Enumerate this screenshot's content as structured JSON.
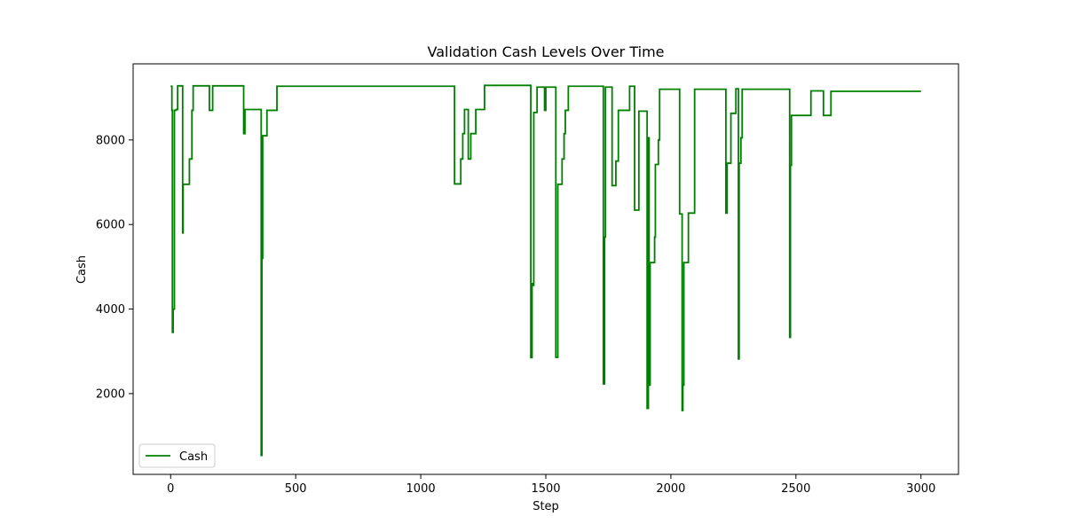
{
  "chart_data": {
    "type": "line",
    "title": "Validation Cash Levels Over Time",
    "xlabel": "Step",
    "ylabel": "Cash",
    "xlim": [
      -150,
      3150
    ],
    "ylim": [
      90,
      9800
    ],
    "xticks": [
      0,
      500,
      1000,
      1500,
      2000,
      2500,
      3000
    ],
    "yticks": [
      2000,
      4000,
      6000,
      8000
    ],
    "grid": false,
    "legend_position": "lower-left",
    "series": [
      {
        "name": "Cash",
        "color": "#008000",
        "points": [
          [
            0,
            9270
          ],
          [
            5,
            9270
          ],
          [
            5,
            8700
          ],
          [
            7,
            8700
          ],
          [
            7,
            3450
          ],
          [
            10,
            3450
          ],
          [
            10,
            4000
          ],
          [
            15,
            4000
          ],
          [
            15,
            8700
          ],
          [
            22,
            8700
          ],
          [
            22,
            8720
          ],
          [
            28,
            8720
          ],
          [
            28,
            9280
          ],
          [
            48,
            9280
          ],
          [
            48,
            5800
          ],
          [
            50,
            5800
          ],
          [
            50,
            6950
          ],
          [
            75,
            6950
          ],
          [
            75,
            7550
          ],
          [
            85,
            7550
          ],
          [
            85,
            8700
          ],
          [
            90,
            8700
          ],
          [
            90,
            9280
          ],
          [
            155,
            9280
          ],
          [
            155,
            8700
          ],
          [
            168,
            8700
          ],
          [
            168,
            9280
          ],
          [
            292,
            9280
          ],
          [
            292,
            8150
          ],
          [
            297,
            8150
          ],
          [
            297,
            8720
          ],
          [
            362,
            8720
          ],
          [
            362,
            540
          ],
          [
            365,
            540
          ],
          [
            365,
            5200
          ],
          [
            368,
            5200
          ],
          [
            368,
            8100
          ],
          [
            385,
            8100
          ],
          [
            385,
            8700
          ],
          [
            425,
            8700
          ],
          [
            425,
            9270
          ],
          [
            1135,
            9270
          ],
          [
            1135,
            6960
          ],
          [
            1160,
            6960
          ],
          [
            1160,
            7550
          ],
          [
            1168,
            7550
          ],
          [
            1168,
            8150
          ],
          [
            1175,
            8150
          ],
          [
            1175,
            8720
          ],
          [
            1190,
            8720
          ],
          [
            1190,
            7550
          ],
          [
            1200,
            7550
          ],
          [
            1200,
            8150
          ],
          [
            1220,
            8150
          ],
          [
            1220,
            8720
          ],
          [
            1255,
            8720
          ],
          [
            1255,
            9290
          ],
          [
            1440,
            9290
          ],
          [
            1440,
            2850
          ],
          [
            1445,
            2850
          ],
          [
            1445,
            4600
          ],
          [
            1448,
            4600
          ],
          [
            1448,
            4560
          ],
          [
            1452,
            4560
          ],
          [
            1452,
            8650
          ],
          [
            1465,
            8650
          ],
          [
            1465,
            9250
          ],
          [
            1495,
            9250
          ],
          [
            1495,
            8700
          ],
          [
            1500,
            8700
          ],
          [
            1500,
            9250
          ],
          [
            1540,
            9250
          ],
          [
            1540,
            2860
          ],
          [
            1548,
            2860
          ],
          [
            1548,
            6950
          ],
          [
            1565,
            6950
          ],
          [
            1565,
            7550
          ],
          [
            1573,
            7550
          ],
          [
            1573,
            8150
          ],
          [
            1578,
            8150
          ],
          [
            1578,
            8700
          ],
          [
            1590,
            8700
          ],
          [
            1590,
            9270
          ],
          [
            1730,
            9270
          ],
          [
            1730,
            2230
          ],
          [
            1735,
            2230
          ],
          [
            1735,
            5700
          ],
          [
            1738,
            5700
          ],
          [
            1738,
            9250
          ],
          [
            1765,
            9250
          ],
          [
            1765,
            6920
          ],
          [
            1780,
            6920
          ],
          [
            1780,
            7500
          ],
          [
            1790,
            7500
          ],
          [
            1790,
            8700
          ],
          [
            1835,
            8700
          ],
          [
            1835,
            9270
          ],
          [
            1855,
            9270
          ],
          [
            1855,
            6340
          ],
          [
            1872,
            6340
          ],
          [
            1872,
            8680
          ],
          [
            1905,
            8680
          ],
          [
            1905,
            1650
          ],
          [
            1910,
            1650
          ],
          [
            1910,
            8050
          ],
          [
            1913,
            8050
          ],
          [
            1913,
            2200
          ],
          [
            1917,
            2200
          ],
          [
            1917,
            5100
          ],
          [
            1935,
            5100
          ],
          [
            1935,
            5700
          ],
          [
            1938,
            5700
          ],
          [
            1938,
            7420
          ],
          [
            1950,
            7420
          ],
          [
            1950,
            8000
          ],
          [
            1955,
            8000
          ],
          [
            1955,
            9200
          ],
          [
            2035,
            9200
          ],
          [
            2035,
            6250
          ],
          [
            2045,
            6250
          ],
          [
            2045,
            1600
          ],
          [
            2048,
            1600
          ],
          [
            2048,
            2200
          ],
          [
            2052,
            2200
          ],
          [
            2052,
            5100
          ],
          [
            2070,
            5100
          ],
          [
            2070,
            6270
          ],
          [
            2095,
            6270
          ],
          [
            2095,
            9200
          ],
          [
            2220,
            9200
          ],
          [
            2220,
            6270
          ],
          [
            2225,
            6270
          ],
          [
            2225,
            7450
          ],
          [
            2240,
            7450
          ],
          [
            2240,
            8630
          ],
          [
            2260,
            8630
          ],
          [
            2260,
            9210
          ],
          [
            2270,
            9210
          ],
          [
            2270,
            2820
          ],
          [
            2273,
            2820
          ],
          [
            2273,
            7450
          ],
          [
            2280,
            7450
          ],
          [
            2280,
            8050
          ],
          [
            2285,
            8050
          ],
          [
            2285,
            9200
          ],
          [
            2475,
            9200
          ],
          [
            2475,
            3330
          ],
          [
            2478,
            3330
          ],
          [
            2478,
            7400
          ],
          [
            2482,
            7400
          ],
          [
            2482,
            8580
          ],
          [
            2560,
            8580
          ],
          [
            2560,
            9160
          ],
          [
            2610,
            9160
          ],
          [
            2610,
            8580
          ],
          [
            2640,
            8580
          ],
          [
            2640,
            9150
          ],
          [
            3000,
            9150
          ]
        ]
      }
    ]
  }
}
